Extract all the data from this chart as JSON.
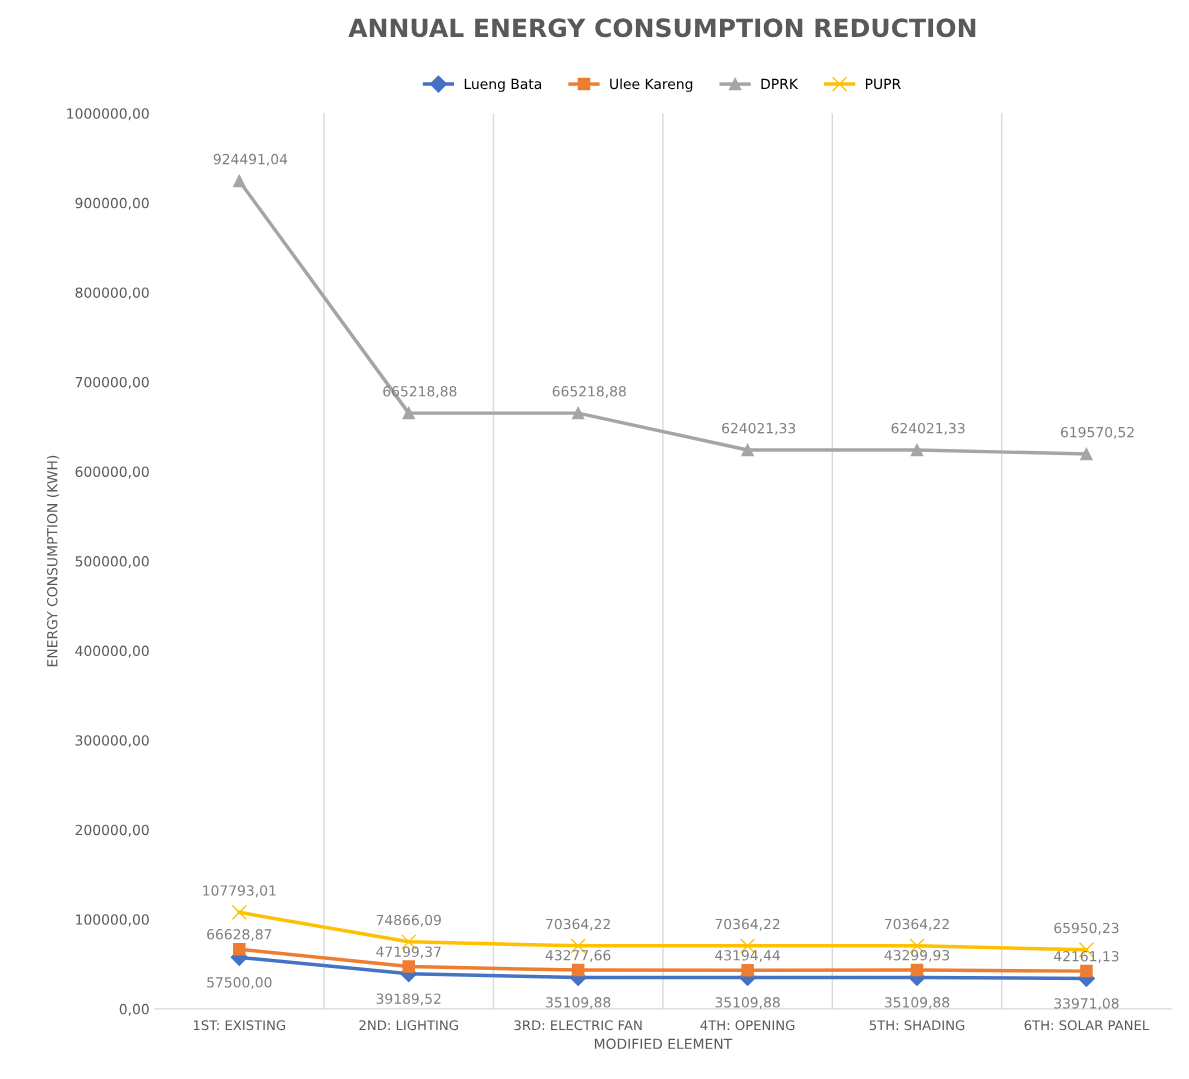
{
  "chart_data": {
    "type": "line",
    "title": "ANNUAL ENERGY CONSUMPTION REDUCTION",
    "xlabel": "MODIFIED ELEMENT",
    "ylabel": "ENERGY CONSUMPTION (KWH)",
    "categories": [
      "1ST: EXISTING",
      "2ND: LIGHTING",
      "3RD: ELECTRIC FAN",
      "4TH: OPENING",
      "5TH: SHADING",
      "6TH: SOLAR PANEL"
    ],
    "series": [
      {
        "name": "Lueng Bata",
        "color": "#4472c4",
        "marker": "diamond",
        "values": [
          57500.0,
          39189.52,
          35109.88,
          35109.88,
          35109.88,
          33971.08
        ],
        "value_labels": [
          "57500,00",
          "39189,52",
          "35109,88",
          "35109,88",
          "35109,88",
          "33971,08"
        ]
      },
      {
        "name": "Ulee Kareng",
        "color": "#ed7d31",
        "marker": "square",
        "values": [
          66628.87,
          47199.37,
          43277.66,
          43194.44,
          43299.93,
          42161.13
        ],
        "value_labels": [
          "66628,87",
          "47199,37",
          "43277,66",
          "43194,44",
          "43299,93",
          "42161,13"
        ]
      },
      {
        "name": "DPRK",
        "color": "#a5a5a5",
        "marker": "triangle",
        "values": [
          924491.04,
          665218.88,
          665218.88,
          624021.33,
          624021.33,
          619570.52
        ],
        "value_labels": [
          "924491,04",
          "665218,88",
          "665218,88",
          "624021,33",
          "624021,33",
          "619570,52"
        ]
      },
      {
        "name": "PUPR",
        "color": "#ffc000",
        "marker": "cross",
        "values": [
          107793.01,
          74866.09,
          70364.22,
          70364.22,
          70364.22,
          65950.23
        ],
        "value_labels": [
          "107793,01",
          "74866,09",
          "70364,22",
          "70364,22",
          "70364,22",
          "65950,23"
        ]
      }
    ],
    "ylim": [
      0,
      1000000
    ],
    "yticks": [
      {
        "value": 0,
        "label": "0,00"
      },
      {
        "value": 100000,
        "label": "100000,00"
      },
      {
        "value": 200000,
        "label": "200000,00"
      },
      {
        "value": 300000,
        "label": "300000,00"
      },
      {
        "value": 400000,
        "label": "400000,00"
      },
      {
        "value": 500000,
        "label": "500000,00"
      },
      {
        "value": 600000,
        "label": "600000,00"
      },
      {
        "value": 700000,
        "label": "700000,00"
      },
      {
        "value": 800000,
        "label": "800000,00"
      },
      {
        "value": 900000,
        "label": "900000,00"
      },
      {
        "value": 1000000,
        "label": "1000000,00"
      }
    ],
    "grid": "x",
    "legend": "top",
    "line_style": "solid"
  }
}
